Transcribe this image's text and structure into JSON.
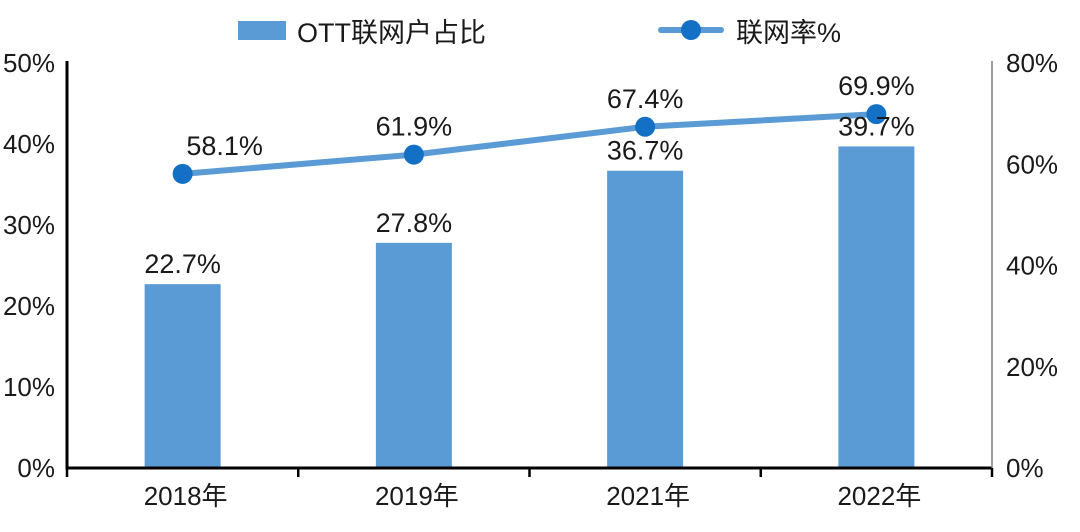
{
  "chart_data": {
    "type": "bar",
    "subtype": "combo-bar-line",
    "title": "",
    "categories": [
      "2018年",
      "2019年",
      "2021年",
      "2022年"
    ],
    "series": [
      {
        "name": "OTT联网户占比",
        "type": "bar",
        "axis": "left",
        "values": [
          22.7,
          27.8,
          36.7,
          39.7
        ],
        "labels": [
          "22.7%",
          "27.8%",
          "36.7%",
          "39.7%"
        ],
        "color": "#5B9BD5"
      },
      {
        "name": "联网率%",
        "type": "line",
        "axis": "right",
        "values": [
          58.1,
          61.9,
          67.4,
          69.9
        ],
        "labels": [
          "58.1%",
          "61.9%",
          "67.4%",
          "69.9%"
        ],
        "line_color": "#5B9BD5",
        "marker_color": "#1470C4",
        "label_dx": [
          42,
          0,
          0,
          0
        ]
      }
    ],
    "left_axis": {
      "min": 0,
      "max": 50,
      "ticks": [
        "0%",
        "10%",
        "20%",
        "30%",
        "40%",
        "50%"
      ]
    },
    "right_axis": {
      "min": 0,
      "max": 80,
      "ticks": [
        "0%",
        "20%",
        "40%",
        "60%",
        "80%"
      ]
    },
    "grid": false,
    "legend_position": "top",
    "axis_color": "#000000",
    "right_axis_color": "#7f7f7f",
    "label_color": "#1a1a1a"
  }
}
